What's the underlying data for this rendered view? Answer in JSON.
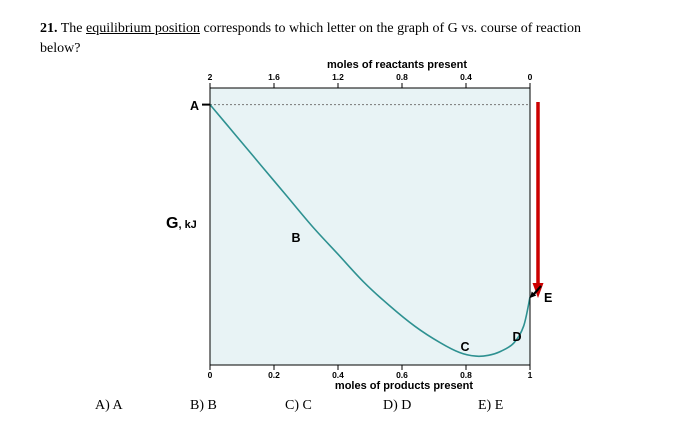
{
  "question": {
    "number": "21.",
    "t1": " The ",
    "underlined": "equilibrium position",
    "t2": " corresponds to which letter on the graph of G vs. course of reaction",
    "t3": "below?"
  },
  "chart_data": {
    "type": "line",
    "top_axis": {
      "title": "moles of reactants present",
      "ticks": [
        "2",
        "1.6",
        "1.2",
        "0.8",
        "0.4",
        "0"
      ],
      "range": [
        2,
        0
      ]
    },
    "bottom_axis": {
      "title": "moles of products present",
      "ticks": [
        "0",
        "0.2",
        "0.4",
        "0.6",
        "0.8",
        "1"
      ],
      "range": [
        0,
        1
      ]
    },
    "y_axis": {
      "label": "G, kJ",
      "label_main": "G",
      "label_unit": ", kJ"
    },
    "curve": {
      "color": "#2e9191",
      "x": [
        0,
        0.08,
        0.16,
        0.24,
        0.32,
        0.4,
        0.48,
        0.56,
        0.64,
        0.72,
        0.78,
        0.83,
        0.87,
        0.91,
        0.95,
        0.98,
        1
      ],
      "g": [
        0.94,
        0.83,
        0.72,
        0.61,
        0.5,
        0.4,
        0.3,
        0.215,
        0.14,
        0.08,
        0.045,
        0.032,
        0.035,
        0.05,
        0.08,
        0.14,
        0.245
      ]
    },
    "point_labels": [
      {
        "label": "A",
        "x": 0
      },
      {
        "label": "B",
        "x": 0.27
      },
      {
        "label": "C",
        "x": 0.8
      },
      {
        "label": "D",
        "x": 0.95
      },
      {
        "label": "E",
        "x": 1
      }
    ],
    "annotations": {
      "dotted_line_g": 0.94,
      "red_arrow_color": "#cc0000"
    }
  },
  "answers": [
    "A) A",
    "B) B",
    "C) C",
    "D) D",
    "E) E"
  ]
}
